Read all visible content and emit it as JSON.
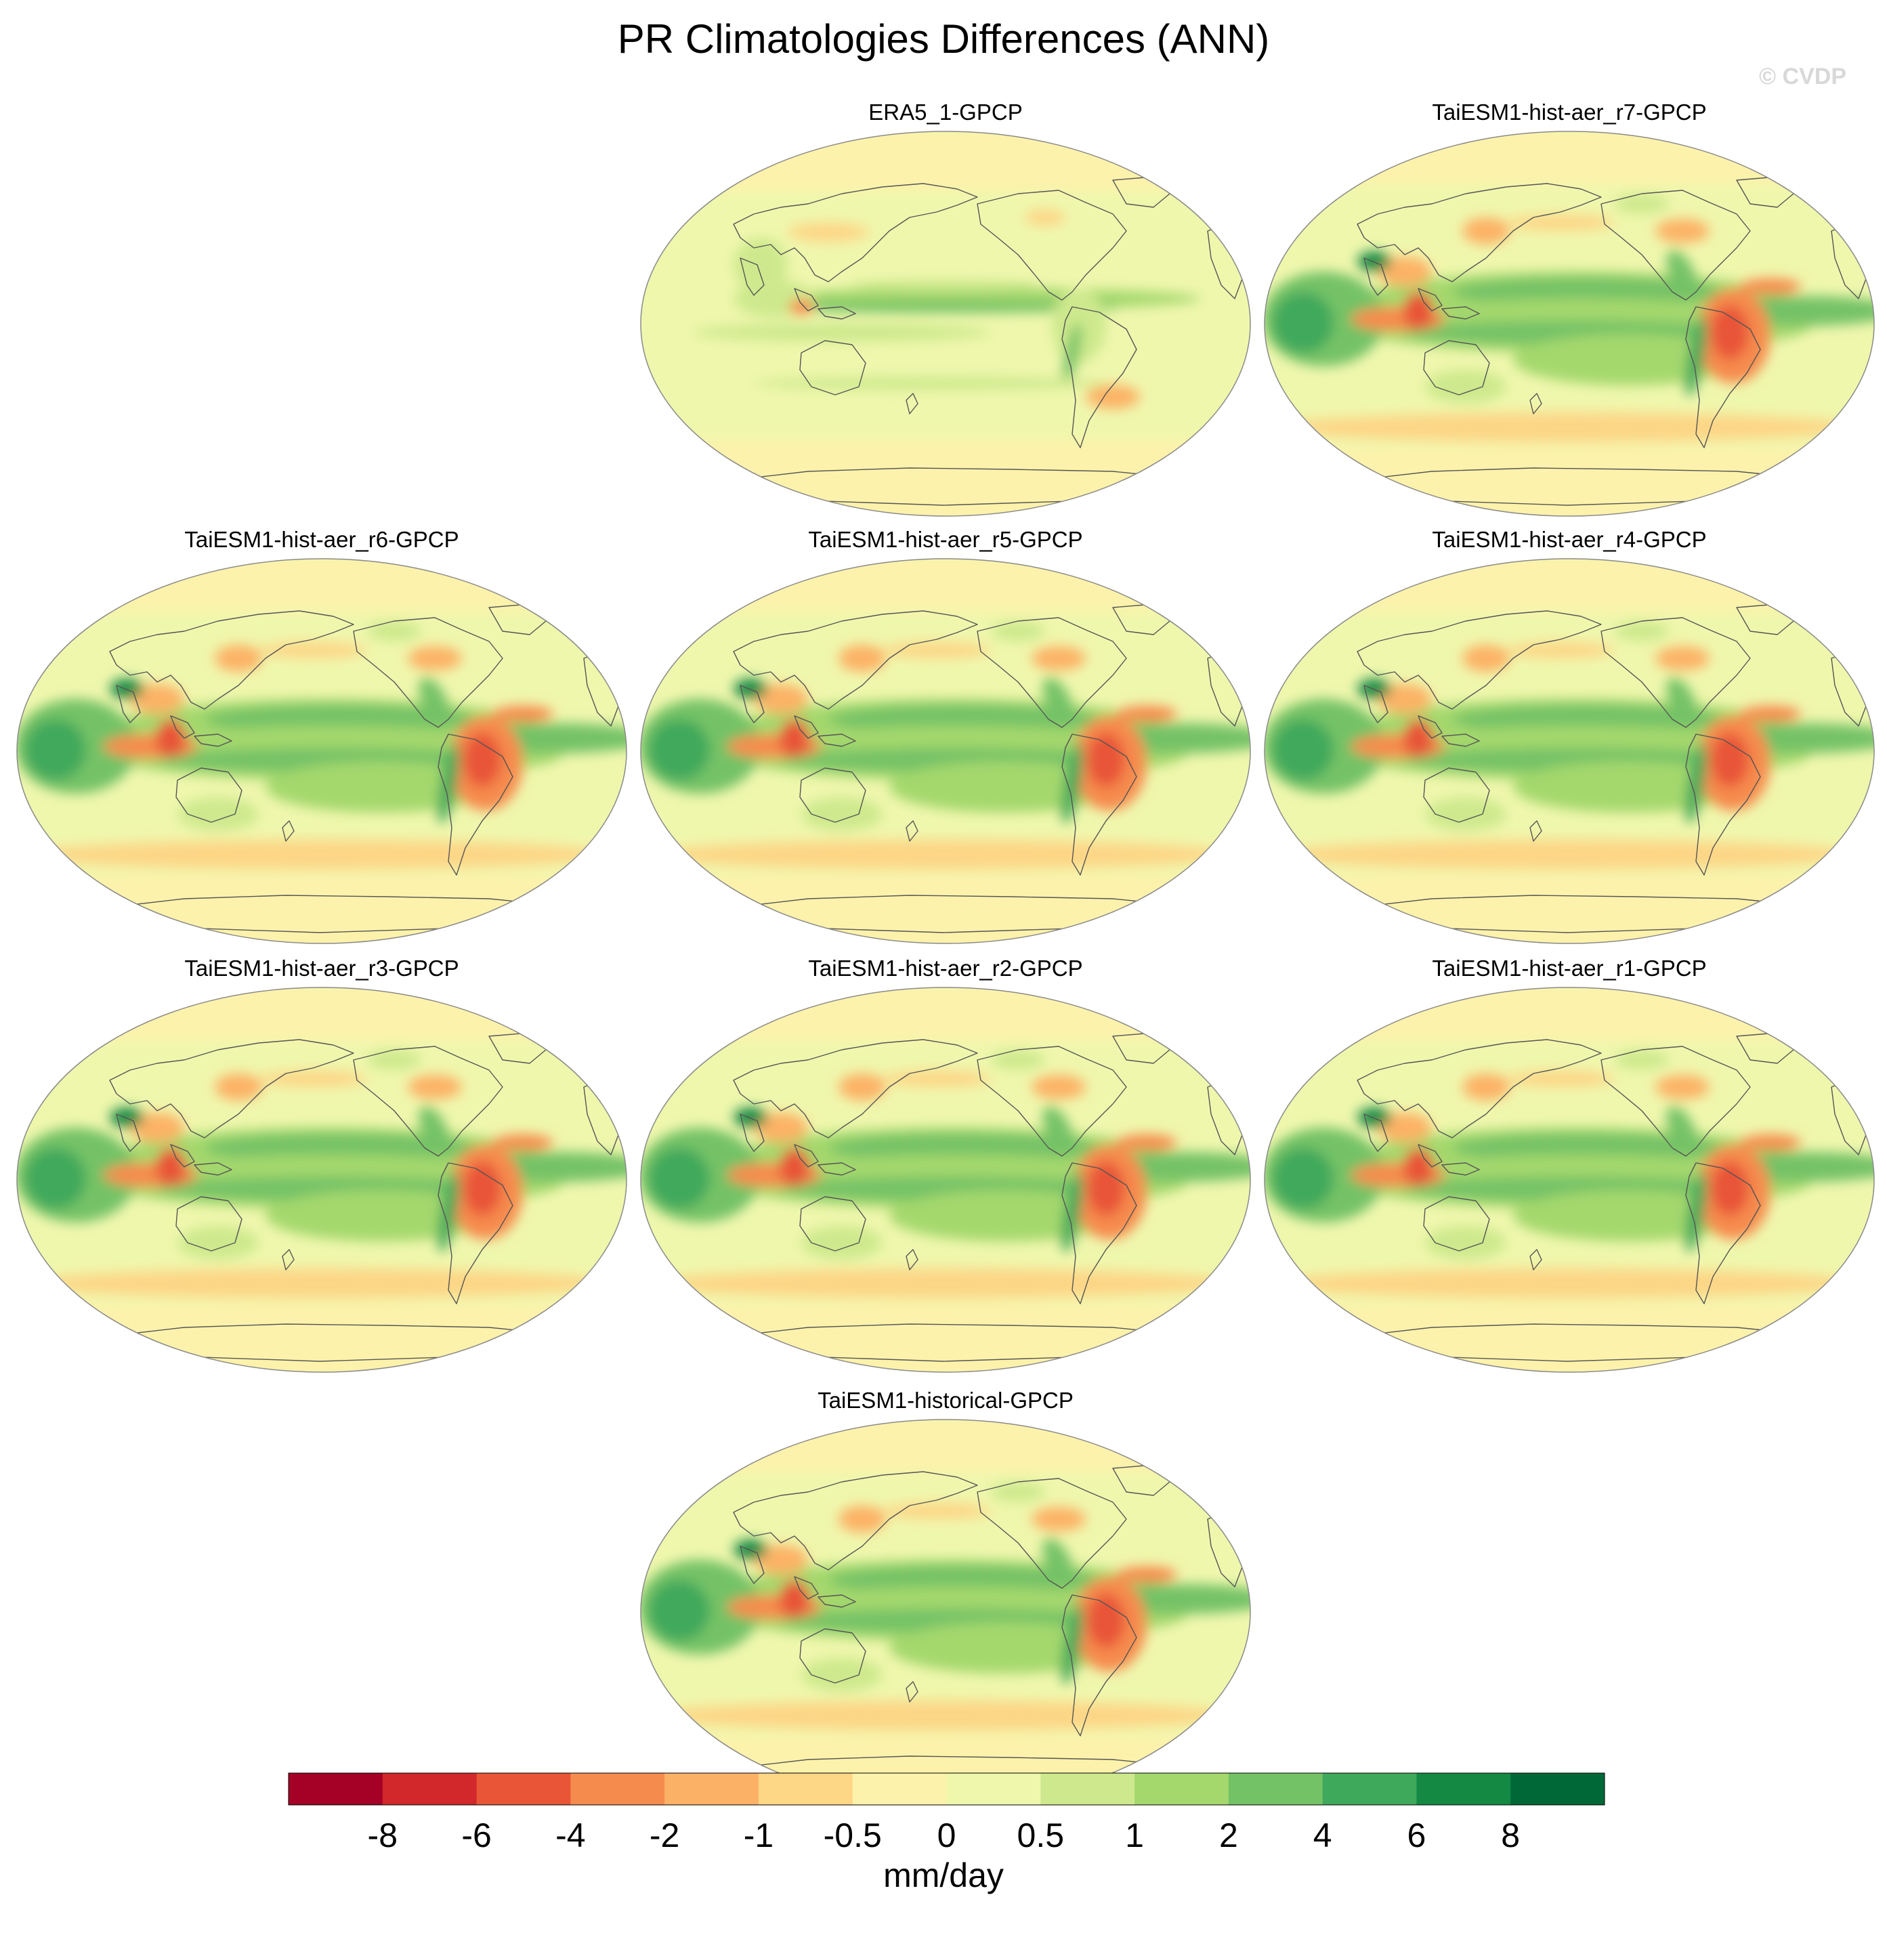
{
  "figure": {
    "title": "PR Climatologies Differences (ANN)",
    "watermark": "© CVDP"
  },
  "panels": [
    {
      "title": "ERA5_1-GPCP",
      "variant": "obs"
    },
    {
      "title": "TaiESM1-hist-aer_r7-GPCP",
      "variant": "model"
    },
    {
      "title": "TaiESM1-hist-aer_r6-GPCP",
      "variant": "model"
    },
    {
      "title": "TaiESM1-hist-aer_r5-GPCP",
      "variant": "model"
    },
    {
      "title": "TaiESM1-hist-aer_r4-GPCP",
      "variant": "model"
    },
    {
      "title": "TaiESM1-hist-aer_r3-GPCP",
      "variant": "model"
    },
    {
      "title": "TaiESM1-hist-aer_r2-GPCP",
      "variant": "model"
    },
    {
      "title": "TaiESM1-hist-aer_r1-GPCP",
      "variant": "model"
    },
    {
      "title": "TaiESM1-historical-GPCP",
      "variant": "model"
    }
  ],
  "colorbar": {
    "label": "mm/day",
    "tick_labels": [
      "-8",
      "-6",
      "-4",
      "-2",
      "-1",
      "-0.5",
      "0",
      "0.5",
      "1",
      "2",
      "4",
      "6",
      "8"
    ],
    "colors": [
      "#a50026",
      "#d2282b",
      "#e85537",
      "#f68b4e",
      "#fcb266",
      "#fdd686",
      "#fdf2ab",
      "#eff7ad",
      "#cee98d",
      "#a4d86d",
      "#74c266",
      "#3fa95b",
      "#138944",
      "#006837"
    ]
  },
  "chart_data": {
    "type": "heatmap",
    "title": "PR Climatologies Differences (ANN)",
    "units": "mm/day",
    "levels": [
      -8,
      -6,
      -4,
      -2,
      -1,
      -0.5,
      0,
      0.5,
      1,
      2,
      4,
      6,
      8
    ],
    "panels": [
      "ERA5_1-GPCP",
      "TaiESM1-hist-aer_r7-GPCP",
      "TaiESM1-hist-aer_r6-GPCP",
      "TaiESM1-hist-aer_r5-GPCP",
      "TaiESM1-hist-aer_r4-GPCP",
      "TaiESM1-hist-aer_r3-GPCP",
      "TaiESM1-hist-aer_r2-GPCP",
      "TaiESM1-hist-aer_r1-GPCP",
      "TaiESM1-historical-GPCP"
    ]
  }
}
